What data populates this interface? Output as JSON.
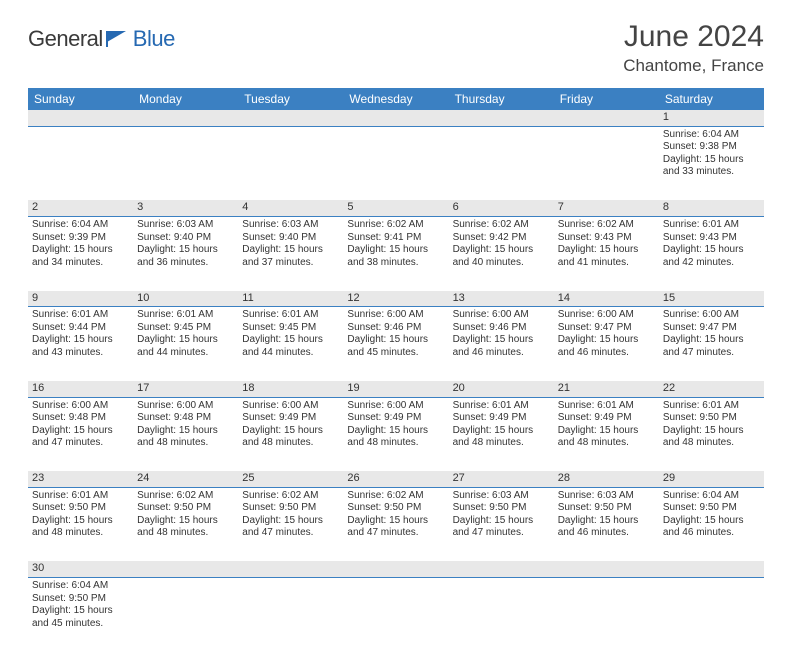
{
  "brand": {
    "text1": "General",
    "text2": "Blue",
    "logo_color": "#2669b2"
  },
  "title": "June 2024",
  "location": "Chantome, France",
  "colors": {
    "header_bg": "#3b80c2",
    "header_fg": "#ffffff",
    "daynum_bg": "#e8e8e8",
    "border": "#3b80c2",
    "text": "#333333",
    "background": "#ffffff"
  },
  "weekday_labels": [
    "Sunday",
    "Monday",
    "Tuesday",
    "Wednesday",
    "Thursday",
    "Friday",
    "Saturday"
  ],
  "calendar": {
    "first_weekday_index": 6,
    "days": [
      {
        "n": 1,
        "sunrise": "6:04 AM",
        "sunset": "9:38 PM",
        "daylight": "15 hours and 33 minutes."
      },
      {
        "n": 2,
        "sunrise": "6:04 AM",
        "sunset": "9:39 PM",
        "daylight": "15 hours and 34 minutes."
      },
      {
        "n": 3,
        "sunrise": "6:03 AM",
        "sunset": "9:40 PM",
        "daylight": "15 hours and 36 minutes."
      },
      {
        "n": 4,
        "sunrise": "6:03 AM",
        "sunset": "9:40 PM",
        "daylight": "15 hours and 37 minutes."
      },
      {
        "n": 5,
        "sunrise": "6:02 AM",
        "sunset": "9:41 PM",
        "daylight": "15 hours and 38 minutes."
      },
      {
        "n": 6,
        "sunrise": "6:02 AM",
        "sunset": "9:42 PM",
        "daylight": "15 hours and 40 minutes."
      },
      {
        "n": 7,
        "sunrise": "6:02 AM",
        "sunset": "9:43 PM",
        "daylight": "15 hours and 41 minutes."
      },
      {
        "n": 8,
        "sunrise": "6:01 AM",
        "sunset": "9:43 PM",
        "daylight": "15 hours and 42 minutes."
      },
      {
        "n": 9,
        "sunrise": "6:01 AM",
        "sunset": "9:44 PM",
        "daylight": "15 hours and 43 minutes."
      },
      {
        "n": 10,
        "sunrise": "6:01 AM",
        "sunset": "9:45 PM",
        "daylight": "15 hours and 44 minutes."
      },
      {
        "n": 11,
        "sunrise": "6:01 AM",
        "sunset": "9:45 PM",
        "daylight": "15 hours and 44 minutes."
      },
      {
        "n": 12,
        "sunrise": "6:00 AM",
        "sunset": "9:46 PM",
        "daylight": "15 hours and 45 minutes."
      },
      {
        "n": 13,
        "sunrise": "6:00 AM",
        "sunset": "9:46 PM",
        "daylight": "15 hours and 46 minutes."
      },
      {
        "n": 14,
        "sunrise": "6:00 AM",
        "sunset": "9:47 PM",
        "daylight": "15 hours and 46 minutes."
      },
      {
        "n": 15,
        "sunrise": "6:00 AM",
        "sunset": "9:47 PM",
        "daylight": "15 hours and 47 minutes."
      },
      {
        "n": 16,
        "sunrise": "6:00 AM",
        "sunset": "9:48 PM",
        "daylight": "15 hours and 47 minutes."
      },
      {
        "n": 17,
        "sunrise": "6:00 AM",
        "sunset": "9:48 PM",
        "daylight": "15 hours and 48 minutes."
      },
      {
        "n": 18,
        "sunrise": "6:00 AM",
        "sunset": "9:49 PM",
        "daylight": "15 hours and 48 minutes."
      },
      {
        "n": 19,
        "sunrise": "6:00 AM",
        "sunset": "9:49 PM",
        "daylight": "15 hours and 48 minutes."
      },
      {
        "n": 20,
        "sunrise": "6:01 AM",
        "sunset": "9:49 PM",
        "daylight": "15 hours and 48 minutes."
      },
      {
        "n": 21,
        "sunrise": "6:01 AM",
        "sunset": "9:49 PM",
        "daylight": "15 hours and 48 minutes."
      },
      {
        "n": 22,
        "sunrise": "6:01 AM",
        "sunset": "9:50 PM",
        "daylight": "15 hours and 48 minutes."
      },
      {
        "n": 23,
        "sunrise": "6:01 AM",
        "sunset": "9:50 PM",
        "daylight": "15 hours and 48 minutes."
      },
      {
        "n": 24,
        "sunrise": "6:02 AM",
        "sunset": "9:50 PM",
        "daylight": "15 hours and 48 minutes."
      },
      {
        "n": 25,
        "sunrise": "6:02 AM",
        "sunset": "9:50 PM",
        "daylight": "15 hours and 47 minutes."
      },
      {
        "n": 26,
        "sunrise": "6:02 AM",
        "sunset": "9:50 PM",
        "daylight": "15 hours and 47 minutes."
      },
      {
        "n": 27,
        "sunrise": "6:03 AM",
        "sunset": "9:50 PM",
        "daylight": "15 hours and 47 minutes."
      },
      {
        "n": 28,
        "sunrise": "6:03 AM",
        "sunset": "9:50 PM",
        "daylight": "15 hours and 46 minutes."
      },
      {
        "n": 29,
        "sunrise": "6:04 AM",
        "sunset": "9:50 PM",
        "daylight": "15 hours and 46 minutes."
      },
      {
        "n": 30,
        "sunrise": "6:04 AM",
        "sunset": "9:50 PM",
        "daylight": "15 hours and 45 minutes."
      }
    ]
  },
  "labels": {
    "sunrise_prefix": "Sunrise: ",
    "sunset_prefix": "Sunset: ",
    "daylight_prefix": "Daylight: "
  }
}
